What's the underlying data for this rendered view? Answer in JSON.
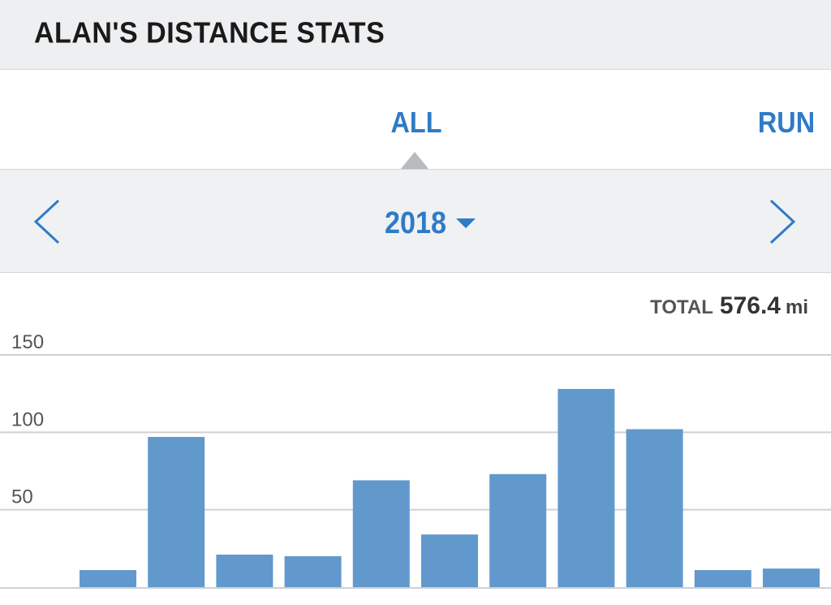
{
  "header": {
    "title": "ALAN'S DISTANCE STATS"
  },
  "tabs": [
    {
      "label": "ALL"
    },
    {
      "label": "RUN"
    }
  ],
  "year_selector": {
    "value": "2018"
  },
  "total": {
    "label": "TOTAL",
    "value": "576.4",
    "unit": "mi"
  },
  "colors": {
    "accent": "#2f7bc6",
    "bar": "#6199cd"
  },
  "icons": {
    "prev": "chevron-left-icon",
    "next": "chevron-right-icon",
    "dropdown": "caret-down-icon"
  },
  "chart_data": {
    "type": "bar",
    "y_ticks": [
      "150",
      "100",
      "50"
    ],
    "ylim": [
      0,
      150
    ],
    "values": [
      11,
      97,
      21,
      20,
      69,
      34,
      73,
      128,
      102,
      11,
      12
    ],
    "grid": true
  }
}
